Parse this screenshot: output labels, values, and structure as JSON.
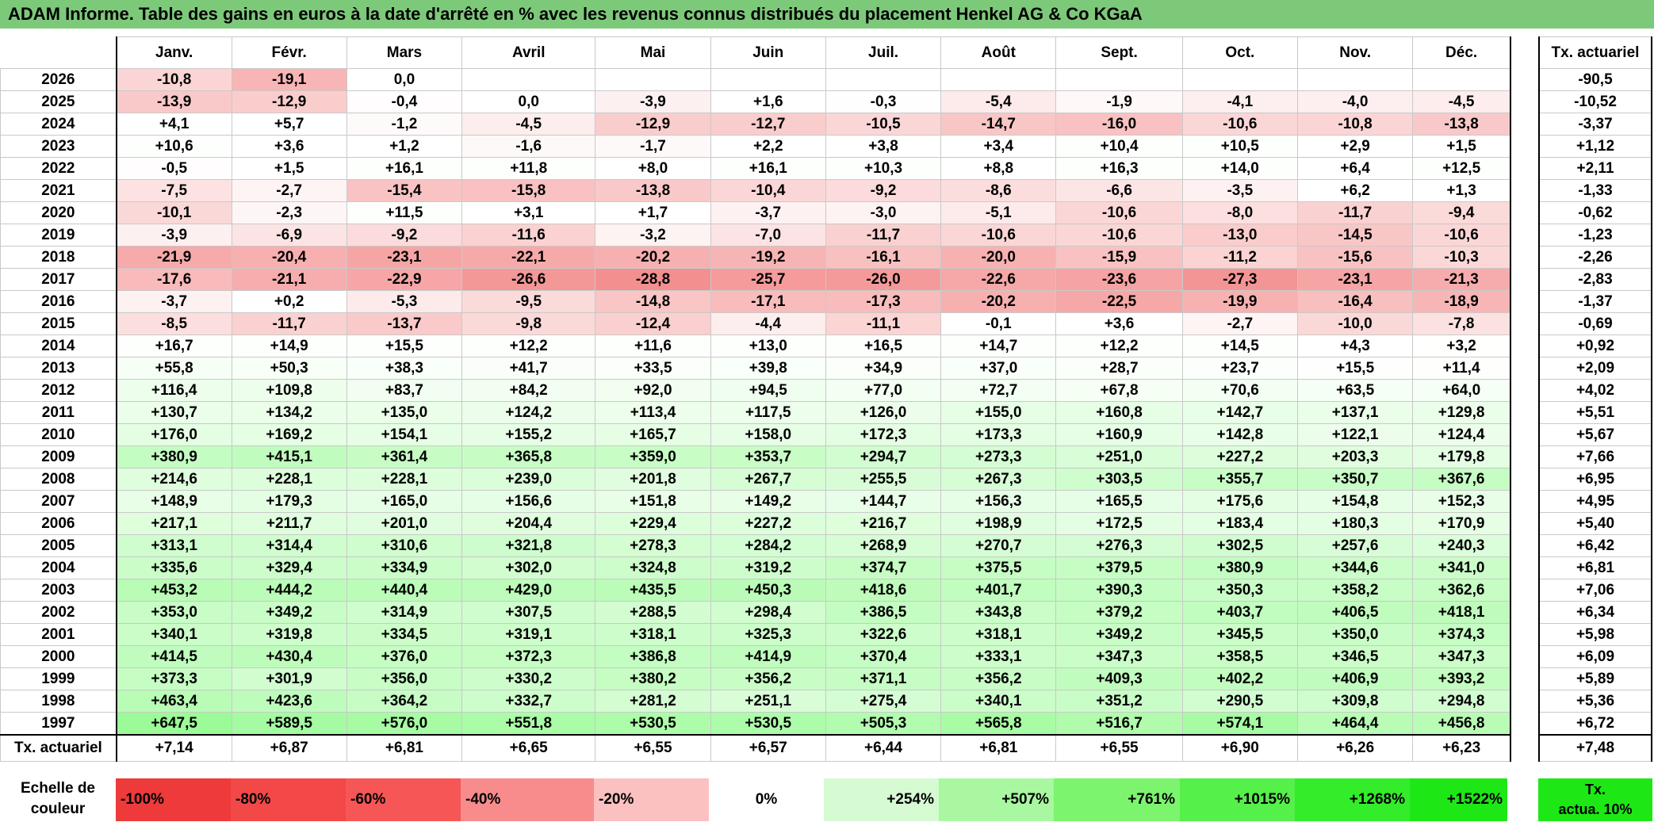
{
  "title": "ADAM Informe. Table des gains en euros à la date d'arrêté en % avec les revenus connus distribués du placement Henkel AG & Co KGaA",
  "chart_data": {
    "type": "table",
    "months": [
      "Janv.",
      "Févr.",
      "Mars",
      "Avril",
      "Mai",
      "Juin",
      "Juil.",
      "Août",
      "Sept.",
      "Oct.",
      "Nov.",
      "Déc."
    ],
    "actuarial_header": "Tx. actuariel",
    "rows": [
      {
        "year": "2026",
        "values": [
          "-10,8",
          "-19,1",
          "0,0",
          "",
          "",
          "",
          "",
          "",
          "",
          "",
          "",
          ""
        ],
        "actuarial": "-90,5"
      },
      {
        "year": "2025",
        "values": [
          "-13,9",
          "-12,9",
          "-0,4",
          "0,0",
          "-3,9",
          "+1,6",
          "-0,3",
          "-5,4",
          "-1,9",
          "-4,1",
          "-4,0",
          "-4,5"
        ],
        "actuarial": "-10,52"
      },
      {
        "year": "2024",
        "values": [
          "+4,1",
          "+5,7",
          "-1,2",
          "-4,5",
          "-12,9",
          "-12,7",
          "-10,5",
          "-14,7",
          "-16,0",
          "-10,6",
          "-10,8",
          "-13,8"
        ],
        "actuarial": "-3,37"
      },
      {
        "year": "2023",
        "values": [
          "+10,6",
          "+3,6",
          "+1,2",
          "-1,6",
          "-1,7",
          "+2,2",
          "+3,8",
          "+3,4",
          "+10,4",
          "+10,5",
          "+2,9",
          "+1,5"
        ],
        "actuarial": "+1,12"
      },
      {
        "year": "2022",
        "values": [
          "-0,5",
          "+1,5",
          "+16,1",
          "+11,8",
          "+8,0",
          "+16,1",
          "+10,3",
          "+8,8",
          "+16,3",
          "+14,0",
          "+6,4",
          "+12,5"
        ],
        "actuarial": "+2,11"
      },
      {
        "year": "2021",
        "values": [
          "-7,5",
          "-2,7",
          "-15,4",
          "-15,8",
          "-13,8",
          "-10,4",
          "-9,2",
          "-8,6",
          "-6,6",
          "-3,5",
          "+6,2",
          "+1,3"
        ],
        "actuarial": "-1,33"
      },
      {
        "year": "2020",
        "values": [
          "-10,1",
          "-2,3",
          "+11,5",
          "+3,1",
          "+1,7",
          "-3,7",
          "-3,0",
          "-5,1",
          "-10,6",
          "-8,0",
          "-11,7",
          "-9,4"
        ],
        "actuarial": "-0,62"
      },
      {
        "year": "2019",
        "values": [
          "-3,9",
          "-6,9",
          "-9,2",
          "-11,6",
          "-3,2",
          "-7,0",
          "-11,7",
          "-10,6",
          "-10,6",
          "-13,0",
          "-14,5",
          "-10,6"
        ],
        "actuarial": "-1,23"
      },
      {
        "year": "2018",
        "values": [
          "-21,9",
          "-20,4",
          "-23,1",
          "-22,1",
          "-20,2",
          "-19,2",
          "-16,1",
          "-20,0",
          "-15,9",
          "-11,2",
          "-15,6",
          "-10,3"
        ],
        "actuarial": "-2,26"
      },
      {
        "year": "2017",
        "values": [
          "-17,6",
          "-21,1",
          "-22,9",
          "-26,6",
          "-28,8",
          "-25,7",
          "-26,0",
          "-22,6",
          "-23,6",
          "-27,3",
          "-23,1",
          "-21,3"
        ],
        "actuarial": "-2,83"
      },
      {
        "year": "2016",
        "values": [
          "-3,7",
          "+0,2",
          "-5,3",
          "-9,5",
          "-14,8",
          "-17,1",
          "-17,3",
          "-20,2",
          "-22,5",
          "-19,9",
          "-16,4",
          "-18,9"
        ],
        "actuarial": "-1,37"
      },
      {
        "year": "2015",
        "values": [
          "-8,5",
          "-11,7",
          "-13,7",
          "-9,8",
          "-12,4",
          "-4,4",
          "-11,1",
          "-0,1",
          "+3,6",
          "-2,7",
          "-10,0",
          "-7,8"
        ],
        "actuarial": "-0,69"
      },
      {
        "year": "2014",
        "values": [
          "+16,7",
          "+14,9",
          "+15,5",
          "+12,2",
          "+11,6",
          "+13,0",
          "+16,5",
          "+14,7",
          "+12,2",
          "+14,5",
          "+4,3",
          "+3,2"
        ],
        "actuarial": "+0,92"
      },
      {
        "year": "2013",
        "values": [
          "+55,8",
          "+50,3",
          "+38,3",
          "+41,7",
          "+33,5",
          "+39,8",
          "+34,9",
          "+37,0",
          "+28,7",
          "+23,7",
          "+15,5",
          "+11,4"
        ],
        "actuarial": "+2,09"
      },
      {
        "year": "2012",
        "values": [
          "+116,4",
          "+109,8",
          "+83,7",
          "+84,2",
          "+92,0",
          "+94,5",
          "+77,0",
          "+72,7",
          "+67,8",
          "+70,6",
          "+63,5",
          "+64,0"
        ],
        "actuarial": "+4,02"
      },
      {
        "year": "2011",
        "values": [
          "+130,7",
          "+134,2",
          "+135,0",
          "+124,2",
          "+113,4",
          "+117,5",
          "+126,0",
          "+155,0",
          "+160,8",
          "+142,7",
          "+137,1",
          "+129,8"
        ],
        "actuarial": "+5,51"
      },
      {
        "year": "2010",
        "values": [
          "+176,0",
          "+169,2",
          "+154,1",
          "+155,2",
          "+165,7",
          "+158,0",
          "+172,3",
          "+173,3",
          "+160,9",
          "+142,8",
          "+122,1",
          "+124,4"
        ],
        "actuarial": "+5,67"
      },
      {
        "year": "2009",
        "values": [
          "+380,9",
          "+415,1",
          "+361,4",
          "+365,8",
          "+359,0",
          "+353,7",
          "+294,7",
          "+273,3",
          "+251,0",
          "+227,2",
          "+203,3",
          "+179,8"
        ],
        "actuarial": "+7,66"
      },
      {
        "year": "2008",
        "values": [
          "+214,6",
          "+228,1",
          "+228,1",
          "+239,0",
          "+201,8",
          "+267,7",
          "+255,5",
          "+267,3",
          "+303,5",
          "+355,7",
          "+350,7",
          "+367,6"
        ],
        "actuarial": "+6,95"
      },
      {
        "year": "2007",
        "values": [
          "+148,9",
          "+179,3",
          "+165,0",
          "+156,6",
          "+151,8",
          "+149,2",
          "+144,7",
          "+156,3",
          "+165,5",
          "+175,6",
          "+154,8",
          "+152,3"
        ],
        "actuarial": "+4,95"
      },
      {
        "year": "2006",
        "values": [
          "+217,1",
          "+211,7",
          "+201,0",
          "+204,4",
          "+229,4",
          "+227,2",
          "+216,7",
          "+198,9",
          "+172,5",
          "+183,4",
          "+180,3",
          "+170,9"
        ],
        "actuarial": "+5,40"
      },
      {
        "year": "2005",
        "values": [
          "+313,1",
          "+314,4",
          "+310,6",
          "+321,8",
          "+278,3",
          "+284,2",
          "+268,9",
          "+270,7",
          "+276,3",
          "+302,5",
          "+257,6",
          "+240,3"
        ],
        "actuarial": "+6,42"
      },
      {
        "year": "2004",
        "values": [
          "+335,6",
          "+329,4",
          "+334,9",
          "+302,0",
          "+324,8",
          "+319,2",
          "+374,7",
          "+375,5",
          "+379,5",
          "+380,9",
          "+344,6",
          "+341,0"
        ],
        "actuarial": "+6,81"
      },
      {
        "year": "2003",
        "values": [
          "+453,2",
          "+444,2",
          "+440,4",
          "+429,0",
          "+435,5",
          "+450,3",
          "+418,6",
          "+401,7",
          "+390,3",
          "+350,3",
          "+358,2",
          "+362,6"
        ],
        "actuarial": "+7,06"
      },
      {
        "year": "2002",
        "values": [
          "+353,0",
          "+349,2",
          "+314,9",
          "+307,5",
          "+288,5",
          "+298,4",
          "+386,5",
          "+343,8",
          "+379,2",
          "+403,7",
          "+406,5",
          "+418,1"
        ],
        "actuarial": "+6,34"
      },
      {
        "year": "2001",
        "values": [
          "+340,1",
          "+319,8",
          "+334,5",
          "+319,1",
          "+318,1",
          "+325,3",
          "+322,6",
          "+318,1",
          "+349,2",
          "+345,5",
          "+350,0",
          "+374,3"
        ],
        "actuarial": "+5,98"
      },
      {
        "year": "2000",
        "values": [
          "+414,5",
          "+430,4",
          "+376,0",
          "+372,3",
          "+386,8",
          "+414,9",
          "+370,4",
          "+333,1",
          "+347,3",
          "+358,5",
          "+346,5",
          "+347,3"
        ],
        "actuarial": "+6,09"
      },
      {
        "year": "1999",
        "values": [
          "+373,3",
          "+301,9",
          "+356,0",
          "+330,2",
          "+380,2",
          "+356,2",
          "+371,1",
          "+356,2",
          "+409,3",
          "+402,2",
          "+406,9",
          "+393,2"
        ],
        "actuarial": "+5,89"
      },
      {
        "year": "1998",
        "values": [
          "+463,4",
          "+423,6",
          "+364,2",
          "+332,7",
          "+281,2",
          "+251,1",
          "+275,4",
          "+340,1",
          "+351,2",
          "+290,5",
          "+309,8",
          "+294,8"
        ],
        "actuarial": "+5,36"
      },
      {
        "year": "1997",
        "values": [
          "+647,5",
          "+589,5",
          "+576,0",
          "+551,8",
          "+530,5",
          "+530,5",
          "+505,3",
          "+565,8",
          "+516,7",
          "+574,1",
          "+464,4",
          "+456,8"
        ],
        "actuarial": "+6,72"
      }
    ],
    "footer": {
      "label": "Tx. actuariel",
      "values": [
        "+7,14",
        "+6,87",
        "+6,81",
        "+6,65",
        "+6,55",
        "+6,57",
        "+6,44",
        "+6,81",
        "+6,55",
        "+6,90",
        "+6,26",
        "+6,23"
      ],
      "actuarial": "+7,48"
    },
    "scale": {
      "label_line1": "Echelle de",
      "label_line2": "couleur",
      "stops": [
        {
          "label": "-100%",
          "color": "#ee3a3a",
          "align": "left"
        },
        {
          "label": "-80%",
          "color": "#f24848",
          "align": "left"
        },
        {
          "label": "-60%",
          "color": "#f65656",
          "align": "left"
        },
        {
          "label": "-40%",
          "color": "#f88c8c",
          "align": "left"
        },
        {
          "label": "-20%",
          "color": "#fbc0c0",
          "align": "left"
        },
        {
          "label": "0%",
          "color": "#ffffff",
          "align": "center"
        },
        {
          "label": "+254%",
          "color": "#d6fbd3",
          "align": "right"
        },
        {
          "label": "+507%",
          "color": "#a9f7a0",
          "align": "right"
        },
        {
          "label": "+761%",
          "color": "#7cf46e",
          "align": "right"
        },
        {
          "label": "+1015%",
          "color": "#55f04a",
          "align": "right"
        },
        {
          "label": "+1268%",
          "color": "#33ec2a",
          "align": "right"
        },
        {
          "label": "+1522%",
          "color": "#1de816",
          "align": "right"
        }
      ],
      "reference_line1": "Tx.",
      "reference_line2": "actua. 10%",
      "reference_color": "#1de816"
    },
    "colors": {
      "title_bg": "#7dc97a",
      "negative_max": "#f38a8a",
      "positive_max": "#9bfb97"
    }
  }
}
